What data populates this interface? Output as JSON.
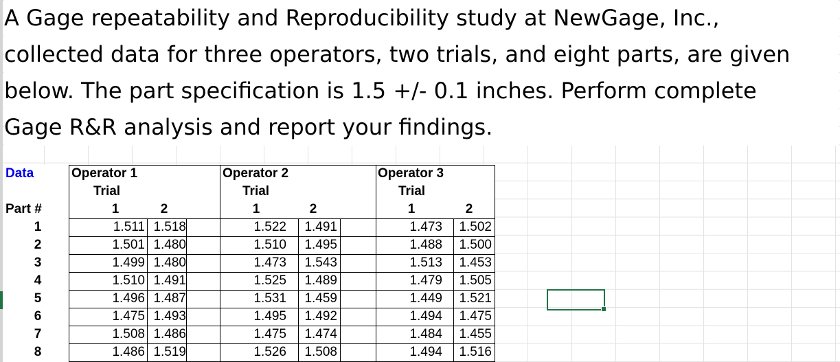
{
  "problem_lines": [
    "A Gage repeatability and Reproducibility study at NewGage, Inc.,",
    "collected data for three operators, two trials, and eight parts, are given",
    "below. The part specification is 1.5 +/- 0.1 inches. Perform complete",
    "Gage R&R analysis and report your findings."
  ],
  "table": {
    "data_label": "Data",
    "part_label": "Part #",
    "trial_label": "Trial",
    "operators": [
      "Operator 1",
      "Operator 2",
      "Operator 3"
    ],
    "trial_numbers": [
      "1",
      "2",
      "1",
      "2",
      "1",
      "2"
    ],
    "rows": [
      {
        "part": "1",
        "values": [
          "1.511",
          "1.518",
          "1.522",
          "1.491",
          "1.473",
          "1.502"
        ]
      },
      {
        "part": "2",
        "values": [
          "1.501",
          "1.480",
          "1.510",
          "1.495",
          "1.488",
          "1.500"
        ]
      },
      {
        "part": "3",
        "values": [
          "1.499",
          "1.480",
          "1.473",
          "1.543",
          "1.513",
          "1.453"
        ]
      },
      {
        "part": "4",
        "values": [
          "1.510",
          "1.491",
          "1.525",
          "1.489",
          "1.479",
          "1.505"
        ]
      },
      {
        "part": "5",
        "values": [
          "1.496",
          "1.487",
          "1.531",
          "1.459",
          "1.449",
          "1.521"
        ]
      },
      {
        "part": "6",
        "values": [
          "1.475",
          "1.493",
          "1.495",
          "1.492",
          "1.494",
          "1.475"
        ]
      },
      {
        "part": "7",
        "values": [
          "1.508",
          "1.486",
          "1.475",
          "1.474",
          "1.484",
          "1.455"
        ]
      },
      {
        "part": "8",
        "values": [
          "1.486",
          "1.519",
          "1.526",
          "1.508",
          "1.494",
          "1.516"
        ]
      }
    ]
  },
  "colors": {
    "data_label": "#0000ee",
    "selection": "#217346",
    "gridline": "#e3e3e3"
  }
}
